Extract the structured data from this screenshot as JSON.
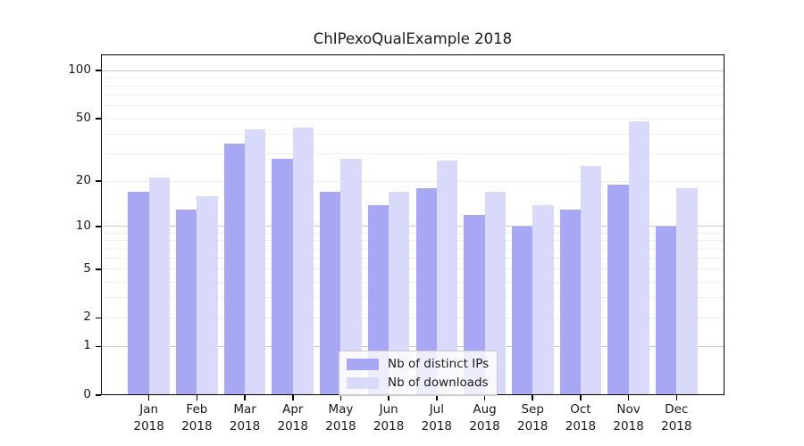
{
  "chart_data": {
    "type": "bar",
    "title": "ChIPexoQualExample 2018",
    "categories": [
      {
        "month": "Jan",
        "year": "2018"
      },
      {
        "month": "Feb",
        "year": "2018"
      },
      {
        "month": "Mar",
        "year": "2018"
      },
      {
        "month": "Apr",
        "year": "2018"
      },
      {
        "month": "May",
        "year": "2018"
      },
      {
        "month": "Jun",
        "year": "2018"
      },
      {
        "month": "Jul",
        "year": "2018"
      },
      {
        "month": "Aug",
        "year": "2018"
      },
      {
        "month": "Sep",
        "year": "2018"
      },
      {
        "month": "Oct",
        "year": "2018"
      },
      {
        "month": "Nov",
        "year": "2018"
      },
      {
        "month": "Dec",
        "year": "2018"
      }
    ],
    "series": [
      {
        "name": "Nb of distinct IPs",
        "color": "#a7a7f3",
        "values": [
          17,
          13,
          35,
          28,
          17,
          14,
          18,
          12,
          10,
          13,
          19,
          10
        ]
      },
      {
        "name": "Nb of downloads",
        "color": "#d9d9f9",
        "values": [
          21,
          16,
          43,
          44,
          28,
          17,
          27,
          17,
          14,
          25,
          48,
          18
        ]
      }
    ],
    "yscale": "log1p",
    "ylim": [
      0,
      126
    ],
    "y_tick_labels": [
      100,
      50,
      20,
      10,
      5,
      2,
      1,
      0
    ],
    "y_major_gridlines": [
      1,
      10,
      100
    ],
    "y_minor_gridlines": [
      2,
      3,
      4,
      5,
      6,
      7,
      8,
      9,
      20,
      30,
      40,
      50,
      60,
      70,
      80,
      90
    ],
    "grid": "horizontal",
    "legend_position": "lower-center"
  },
  "colors": {
    "background": "#ffffff",
    "axis": "#000000",
    "text": "#1a1a1a",
    "grid_major": "#c9c9c9",
    "grid_minor": "#efefef",
    "legend_border": "#cccccc",
    "legend_background": "#ffffffcc"
  }
}
